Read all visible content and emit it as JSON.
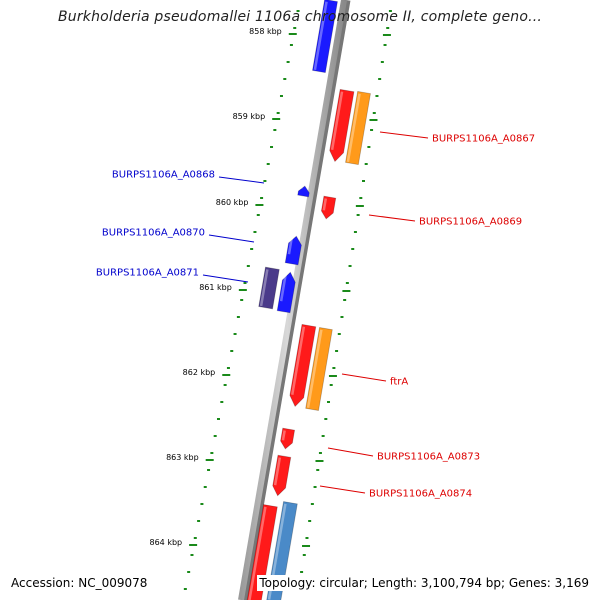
{
  "title": "Burkholderia pseudomallei 1106a chromosome II, complete geno...",
  "colors": {
    "backbone": "#7f7f7f",
    "tick": "#1a8a1a",
    "forward_gene": "#ff1a1a",
    "reverse_gene": "#1a1aff",
    "orange_feature": "#ff9a1a",
    "purple_feature": "#4a3a8a",
    "steelblue_feature": "#4a8ac8",
    "forward_label": "#dd0000",
    "reverse_label": "#0000cc"
  },
  "kbp_labels": [
    "858 kbp",
    "859 kbp",
    "860 kbp",
    "861 kbp",
    "862 kbp",
    "863 kbp",
    "864 kbp"
  ],
  "gene_labels": [
    {
      "text": "BURPS1106A_A0867",
      "strand": "forward"
    },
    {
      "text": "BURPS1106A_A0868",
      "strand": "reverse"
    },
    {
      "text": "BURPS1106A_A0869",
      "strand": "forward"
    },
    {
      "text": "BURPS1106A_A0870",
      "strand": "reverse"
    },
    {
      "text": "BURPS1106A_A0871",
      "strand": "reverse"
    },
    {
      "text": "ftrA",
      "strand": "forward"
    },
    {
      "text": "BURPS1106A_A0873",
      "strand": "forward"
    },
    {
      "text": "BURPS1106A_A0874",
      "strand": "forward"
    }
  ],
  "footer": {
    "accession": "Accession: NC_009078",
    "topology": "Topology: circular; Length: 3,100,794 bp; Genes: 3,169"
  }
}
